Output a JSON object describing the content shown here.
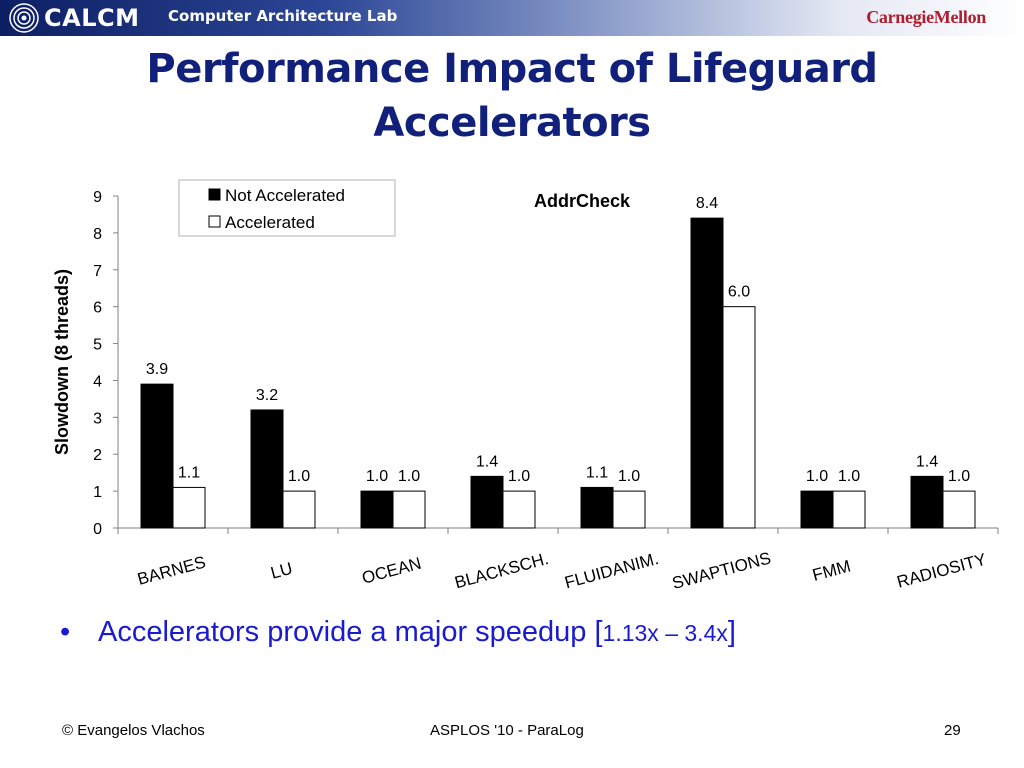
{
  "header": {
    "logo_text": "CALCM",
    "lab_name": "Computer Architecture Lab",
    "university": "CarnegieMellon"
  },
  "slide": {
    "title_line1": "Performance Impact of Lifeguard",
    "title_line2": "Accelerators"
  },
  "chart_data": {
    "type": "bar",
    "title": "AddrCheck",
    "ylabel": "Slowdown (8 threads)",
    "xlabel": "",
    "ylim": [
      0,
      9
    ],
    "yticks": [
      0,
      1,
      2,
      3,
      4,
      5,
      6,
      7,
      8,
      9
    ],
    "grid": false,
    "legend_position": "top-left",
    "categories": [
      "BARNES",
      "LU",
      "OCEAN",
      "BLACKSCH.",
      "FLUIDANIM.",
      "SWAPTIONS",
      "FMM",
      "RADIOSITY"
    ],
    "series": [
      {
        "name": "Not Accelerated",
        "color": "#000000",
        "values": [
          3.9,
          3.2,
          1.0,
          1.4,
          1.1,
          8.4,
          1.0,
          1.4
        ]
      },
      {
        "name": "Accelerated",
        "color": "#ffffff",
        "values": [
          1.1,
          1.0,
          1.0,
          1.0,
          1.0,
          6.0,
          1.0,
          1.0
        ]
      }
    ]
  },
  "bullet": {
    "symbol": "•",
    "text": "Accelerators provide a major speedup [",
    "range": "1.13x – 3.4x",
    "close": "]"
  },
  "footer": {
    "author": "© Evangelos Vlachos",
    "venue": "ASPLOS '10 - ParaLog",
    "page_number": "29"
  },
  "colors": {
    "title": "#11207a",
    "bullet": "#1a1ad0",
    "brand_red": "#b01c2e",
    "header_dark": "#0d1f63"
  }
}
